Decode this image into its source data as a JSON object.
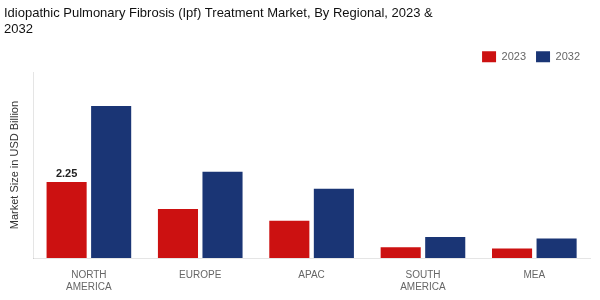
{
  "chart_data": {
    "type": "bar",
    "title": "Idiopathic Pulmonary Fibrosis (Ipf) Treatment Market, By Regional, 2023 &\n2032",
    "ylabel": "Market Size in USD Billion",
    "categories": [
      "NORTH\nAMERICA",
      "EUROPE",
      "APAC",
      "SOUTH\nAMERICA",
      "MEA"
    ],
    "series": [
      {
        "name": "2023",
        "color": "#cc1111",
        "values": [
          2.25,
          1.45,
          1.1,
          0.32,
          0.28
        ]
      },
      {
        "name": "2032",
        "color": "#1a3575",
        "values": [
          4.5,
          2.55,
          2.05,
          0.62,
          0.58
        ]
      }
    ],
    "ylim": [
      0,
      5.5
    ],
    "yticks": [],
    "tick_labels": "x",
    "grid": false,
    "legend": "upper right",
    "annotations": [
      {
        "text": "2.25",
        "x": "NORTH\nAMERICA",
        "y": 2.25,
        "series": "2023"
      }
    ]
  }
}
